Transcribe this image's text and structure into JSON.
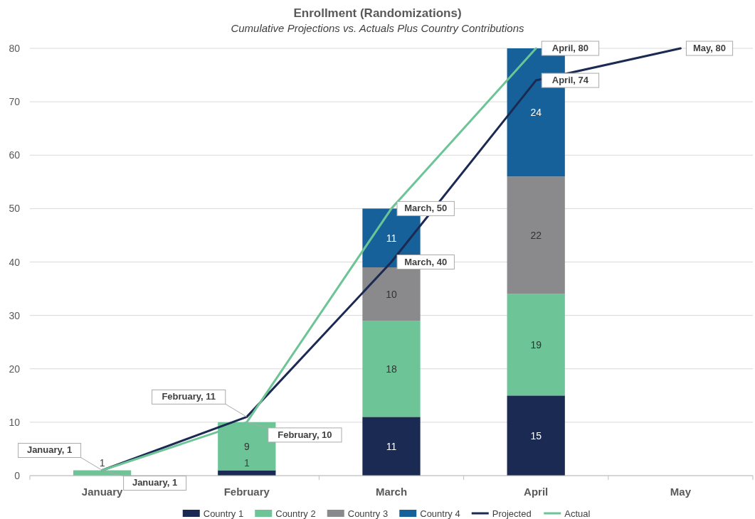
{
  "chart_data": {
    "type": "bar",
    "title": "Enrollment (Randomizations)",
    "subtitle": "Cumulative Projections vs. Actuals Plus Country Contributions",
    "categories": [
      "January",
      "February",
      "March",
      "April",
      "May"
    ],
    "stacked": true,
    "ylim": [
      0,
      80
    ],
    "yticks": [
      0,
      10,
      20,
      30,
      40,
      50,
      60,
      70,
      80
    ],
    "grid": "y",
    "legend": "bottom",
    "series": [
      {
        "name": "Country 1",
        "color": "#1b2a52",
        "values": [
          null,
          1,
          11,
          15,
          null
        ],
        "value_labels": [
          null,
          "1",
          "11",
          "15",
          null
        ]
      },
      {
        "name": "Country 2",
        "color": "#6cc497",
        "values": [
          1,
          9,
          18,
          19,
          null
        ],
        "value_labels": [
          "1",
          "9",
          "18",
          "19",
          null
        ]
      },
      {
        "name": "Country 3",
        "color": "#8a8a8c",
        "values": [
          null,
          null,
          10,
          22,
          null
        ],
        "value_labels": [
          null,
          null,
          "10",
          "22",
          null
        ]
      },
      {
        "name": "Country 4",
        "color": "#16619a",
        "values": [
          null,
          null,
          11,
          24,
          null
        ],
        "value_labels": [
          null,
          null,
          "11",
          "24",
          null
        ]
      },
      {
        "name": "Projected",
        "type": "line",
        "color": "#1b2a52",
        "values": [
          1,
          11,
          40,
          74,
          80
        ],
        "value_labels": [
          "January, 1",
          "February, 11",
          "March, 40",
          "April, 74",
          "May, 80"
        ]
      },
      {
        "name": "Actual",
        "type": "line",
        "color": "#6cc497",
        "values": [
          1,
          10,
          50,
          80,
          null
        ],
        "value_labels": [
          "January, 1",
          "February, 10",
          "March, 50",
          "April, 80",
          null
        ]
      }
    ]
  }
}
